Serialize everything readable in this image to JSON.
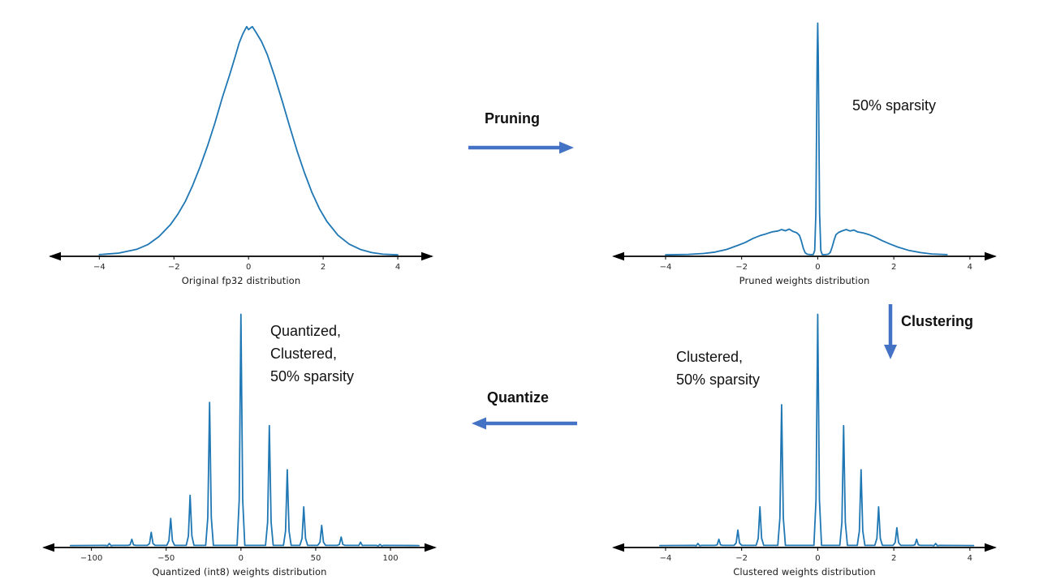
{
  "colors": {
    "accent": "#4472C4",
    "curve": "#1f77b4",
    "axis": "#000000",
    "tick_text": "#262626"
  },
  "arrows": {
    "pruning": {
      "label": "Pruning",
      "direction": "right"
    },
    "clustering": {
      "label": "Clustering",
      "direction": "down"
    },
    "quantize": {
      "label": "Quantize",
      "direction": "left"
    }
  },
  "annotations": {
    "pruned_sparsity": "50% sparsity",
    "clustered_sparsity": "Clustered,\n50% sparsity",
    "quantized_sparsity": "Quantized,\nClustered,\n50% sparsity"
  },
  "chart_data": [
    {
      "id": "original-fp32",
      "type": "line",
      "caption": "Original fp32 distribution",
      "xlabel": "Original fp32 distribution",
      "xmin": -5.4,
      "xmax": 5.0,
      "ticks": [
        -4,
        -2,
        0,
        2,
        4
      ],
      "tick_labels": [
        "−4",
        "−2",
        "0",
        "2",
        "4"
      ],
      "points": [
        [
          -4,
          0.002
        ],
        [
          -3.5,
          0.008
        ],
        [
          -3,
          0.025
        ],
        [
          -2.7,
          0.045
        ],
        [
          -2.4,
          0.08
        ],
        [
          -2.1,
          0.13
        ],
        [
          -1.9,
          0.175
        ],
        [
          -1.7,
          0.23
        ],
        [
          -1.5,
          0.3
        ],
        [
          -1.3,
          0.38
        ],
        [
          -1.1,
          0.47
        ],
        [
          -0.9,
          0.57
        ],
        [
          -0.7,
          0.68
        ],
        [
          -0.5,
          0.78
        ],
        [
          -0.35,
          0.86
        ],
        [
          -0.25,
          0.915
        ],
        [
          -0.15,
          0.955
        ],
        [
          -0.05,
          0.985
        ],
        [
          0,
          0.972
        ],
        [
          0.1,
          0.985
        ],
        [
          0.2,
          0.96
        ],
        [
          0.35,
          0.92
        ],
        [
          0.5,
          0.865
        ],
        [
          0.7,
          0.77
        ],
        [
          0.9,
          0.665
        ],
        [
          1.1,
          0.555
        ],
        [
          1.3,
          0.45
        ],
        [
          1.5,
          0.355
        ],
        [
          1.7,
          0.27
        ],
        [
          1.9,
          0.2
        ],
        [
          2.1,
          0.145
        ],
        [
          2.4,
          0.085
        ],
        [
          2.7,
          0.047
        ],
        [
          3,
          0.024
        ],
        [
          3.3,
          0.011
        ],
        [
          3.6,
          0.004
        ],
        [
          4,
          0.001
        ]
      ]
    },
    {
      "id": "pruned-weights",
      "type": "line",
      "caption": "Pruned weights distribution",
      "xlabel": "Pruned weights distribution",
      "xmin": -5.45,
      "xmax": 4.75,
      "ticks": [
        -4,
        -2,
        0,
        2,
        4
      ],
      "tick_labels": [
        "−4",
        "−2",
        "0",
        "2",
        "4"
      ],
      "points": [
        [
          -4,
          0.001
        ],
        [
          -3.4,
          0.003
        ],
        [
          -3,
          0.007
        ],
        [
          -2.7,
          0.013
        ],
        [
          -2.4,
          0.024
        ],
        [
          -2.1,
          0.042
        ],
        [
          -1.9,
          0.055
        ],
        [
          -1.7,
          0.072
        ],
        [
          -1.5,
          0.085
        ],
        [
          -1.35,
          0.092
        ],
        [
          -1.2,
          0.1
        ],
        [
          -1.05,
          0.104
        ],
        [
          -0.95,
          0.11
        ],
        [
          -0.85,
          0.105
        ],
        [
          -0.75,
          0.112
        ],
        [
          -0.65,
          0.102
        ],
        [
          -0.55,
          0.096
        ],
        [
          -0.48,
          0.085
        ],
        [
          -0.43,
          0.06
        ],
        [
          -0.38,
          0.03
        ],
        [
          -0.33,
          0.01
        ],
        [
          -0.28,
          0.004
        ],
        [
          -0.2,
          0.002
        ],
        [
          -0.12,
          0.002
        ],
        [
          -0.08,
          0.02
        ],
        [
          -0.05,
          0.18
        ],
        [
          -0.03,
          0.55
        ],
        [
          -0.015,
          0.85
        ],
        [
          0,
          1.0
        ],
        [
          0.015,
          0.85
        ],
        [
          0.03,
          0.55
        ],
        [
          0.05,
          0.18
        ],
        [
          0.08,
          0.02
        ],
        [
          0.12,
          0.002
        ],
        [
          0.2,
          0.002
        ],
        [
          0.28,
          0.004
        ],
        [
          0.33,
          0.012
        ],
        [
          0.38,
          0.035
        ],
        [
          0.43,
          0.065
        ],
        [
          0.48,
          0.088
        ],
        [
          0.55,
          0.098
        ],
        [
          0.65,
          0.105
        ],
        [
          0.75,
          0.11
        ],
        [
          0.85,
          0.104
        ],
        [
          0.95,
          0.108
        ],
        [
          1.05,
          0.1
        ],
        [
          1.2,
          0.095
        ],
        [
          1.35,
          0.088
        ],
        [
          1.5,
          0.078
        ],
        [
          1.7,
          0.062
        ],
        [
          1.9,
          0.048
        ],
        [
          2.1,
          0.035
        ],
        [
          2.4,
          0.02
        ],
        [
          2.7,
          0.011
        ],
        [
          3,
          0.005
        ],
        [
          3.4,
          0.002
        ]
      ]
    },
    {
      "id": "clustered-weights",
      "type": "spikes",
      "caption": "Clustered weights distribution",
      "xlabel": "Clustered weights distribution",
      "xmin": -5.45,
      "xmax": 4.75,
      "ticks": [
        -4,
        -2,
        0,
        2,
        4
      ],
      "tick_labels": [
        "−4",
        "−2",
        "0",
        "2",
        "4"
      ],
      "spike_halfwidth": 0.1,
      "spikes": {
        "positions": [
          -3.15,
          -2.6,
          -2.1,
          -1.52,
          -0.95,
          0,
          0.68,
          1.14,
          1.6,
          2.08,
          2.6,
          3.1
        ],
        "heights": [
          0.012,
          0.03,
          0.07,
          0.17,
          0.61,
          1.0,
          0.52,
          0.33,
          0.17,
          0.08,
          0.03,
          0.012
        ]
      }
    },
    {
      "id": "quantized-int8-weights",
      "type": "spikes",
      "caption": "Quantized (int8) weights distribution",
      "xlabel": "Quantized (int8) weights distribution",
      "xmin": -134,
      "xmax": 132,
      "ticks": [
        -100,
        -50,
        0,
        50,
        100
      ],
      "tick_labels": [
        "−100",
        "−50",
        "0",
        "50",
        "100"
      ],
      "spike_halfwidth": 2.6,
      "spikes": {
        "positions": [
          -88,
          -73,
          -60,
          -47,
          -34,
          -21,
          0,
          19,
          31,
          42,
          54,
          67,
          80,
          93
        ],
        "heights": [
          0.012,
          0.03,
          0.06,
          0.12,
          0.22,
          0.62,
          1.0,
          0.52,
          0.33,
          0.17,
          0.09,
          0.04,
          0.018,
          0.008
        ]
      }
    }
  ]
}
